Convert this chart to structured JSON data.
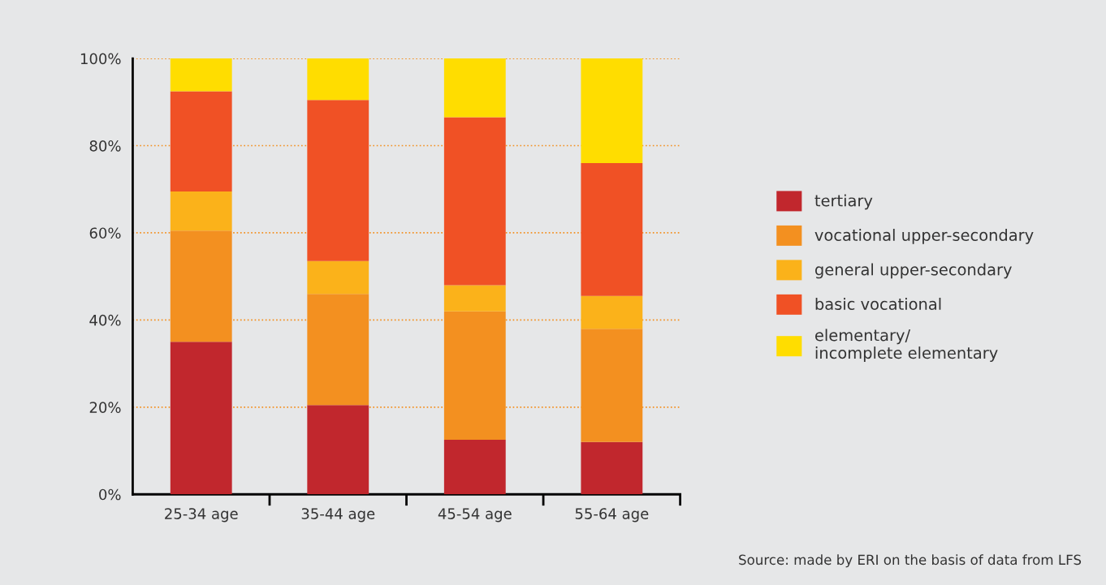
{
  "chart_data": {
    "type": "bar",
    "stacked": true,
    "categories": [
      "25-34 age",
      "35-44 age",
      "45-54 age",
      "55-64 age"
    ],
    "series": [
      {
        "name": "tertiary",
        "color": "#c1272d",
        "values": [
          35,
          20.5,
          12.5,
          12
        ]
      },
      {
        "name": "vocational upper-secondary",
        "color": "#f39020",
        "values": [
          25.5,
          25.5,
          29.5,
          26
        ]
      },
      {
        "name": "general upper-secondary",
        "color": "#fbb21a",
        "values": [
          9,
          7.5,
          6,
          7.5
        ]
      },
      {
        "name": "basic vocational",
        "color": "#f05125",
        "values": [
          23,
          37,
          38.5,
          30.5
        ]
      },
      {
        "name": "elementary/\nincomplete elementary",
        "color": "#ffdd00",
        "values": [
          7.5,
          9.5,
          13.5,
          24
        ]
      }
    ],
    "ylim": [
      0,
      100
    ],
    "yticks": [
      {
        "value": 0,
        "label": "0%"
      },
      {
        "value": 20,
        "label": "20%"
      },
      {
        "value": 40,
        "label": "40%"
      },
      {
        "value": 60,
        "label": "60%"
      },
      {
        "value": 80,
        "label": "80%"
      },
      {
        "value": 100,
        "label": "100%"
      }
    ],
    "grid": "y",
    "legend": "right",
    "annotations": [
      "Source: made by ERI on the basis of data from LFS"
    ]
  }
}
